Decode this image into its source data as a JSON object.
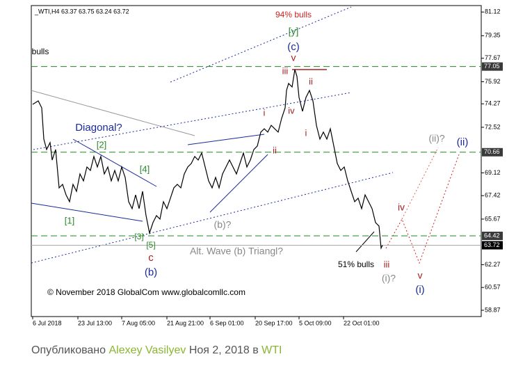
{
  "chart_data": {
    "type": "line",
    "title": "_WTI,H4  63.37 63.75 63.24 63.72",
    "credit": "© November 2018 GlobalCom www.globalcomllc.com",
    "x": [
      0,
      8,
      13,
      16,
      20,
      25,
      28,
      33,
      38,
      43,
      48,
      53,
      58,
      63,
      68,
      73,
      78,
      83,
      88,
      93,
      98,
      103,
      108,
      113,
      118,
      123,
      128,
      133,
      138,
      143,
      148,
      153,
      158,
      163,
      168,
      173,
      178,
      183,
      188,
      193,
      198,
      203,
      208,
      213,
      218,
      223,
      228,
      233,
      238,
      243,
      248,
      253,
      258,
      263,
      268,
      273,
      278,
      283,
      288,
      293,
      298,
      303,
      308,
      313,
      318,
      323,
      328,
      333,
      338,
      343,
      348,
      353,
      358,
      363,
      365,
      368,
      373,
      377,
      380,
      383,
      388,
      393,
      398,
      403,
      408,
      413,
      418,
      423,
      428,
      433,
      438,
      443,
      448,
      453,
      458,
      463,
      468,
      473,
      478,
      483,
      488,
      493,
      498,
      501,
      503
    ],
    "series": [
      {
        "name": "WTI",
        "color": "#000000",
        "values": [
          74.23,
          74.49,
          73.97,
          71.64,
          70.86,
          71.38,
          70.08,
          70.86,
          68.0,
          68.26,
          67.48,
          66.97,
          68.26,
          67.74,
          69.04,
          68.52,
          69.56,
          69.3,
          70.34,
          69.56,
          70.34,
          69.04,
          69.56,
          68.52,
          69.3,
          68.52,
          69.56,
          68.78,
          66.97,
          66.45,
          67.48,
          66.45,
          67.74,
          65.93,
          64.63,
          65.41,
          65.93,
          65.67,
          66.97,
          66.45,
          67.23,
          68.0,
          68.26,
          68.0,
          69.04,
          69.56,
          69.82,
          70.34,
          70.08,
          70.6,
          69.56,
          68.52,
          68.0,
          68.78,
          68.0,
          69.04,
          69.56,
          70.08,
          69.56,
          69.04,
          69.82,
          70.6,
          69.56,
          70.08,
          70.86,
          71.12,
          72.16,
          72.41,
          72.16,
          72.67,
          72.41,
          72.16,
          73.19,
          73.97,
          75.27,
          75.79,
          75.53,
          76.83,
          76.31,
          74.75,
          73.71,
          74.75,
          75.27,
          74.49,
          72.67,
          71.64,
          72.16,
          71.64,
          72.41,
          71.12,
          69.82,
          69.3,
          69.56,
          68.52,
          67.74,
          66.97,
          67.23,
          66.45,
          67.48,
          66.97,
          66.45,
          65.41,
          65.15,
          63.5,
          63.72
        ]
      }
    ],
    "xlim": [
      0,
      645
    ],
    "xticks": [
      {
        "value": 0,
        "label": "6 Jul 2018"
      },
      {
        "value": 65,
        "label": "23 Jul 13:00"
      },
      {
        "value": 128,
        "label": "7 Aug 05:00"
      },
      {
        "value": 193,
        "label": "21 Aug 21:00"
      },
      {
        "value": 255,
        "label": "6 Sep 01:00"
      },
      {
        "value": 320,
        "label": "20 Sep 17:00"
      },
      {
        "value": 383,
        "label": "5 Oct 09:00"
      },
      {
        "value": 447,
        "label": "22 Oct 01:00"
      }
    ],
    "ylim": [
      58.4,
      81.6
    ],
    "yticks": [
      81.12,
      79.35,
      77.67,
      75.92,
      74.27,
      72.52,
      69.12,
      67.42,
      65.67,
      62.27,
      60.57,
      58.87
    ],
    "levels": [
      77.05,
      70.66,
      64.42
    ],
    "last_price": 63.72,
    "annotations": [
      "94% bulls",
      "[y]",
      "(c)",
      "v",
      "iii",
      "ii",
      "iv",
      "i",
      "i",
      "ii",
      "Diagonal?",
      "[2]",
      "[4]",
      "[1]",
      "[3]",
      "[5]",
      "c",
      "(b)",
      "(b)?",
      "Alt. Wave (b) Triangl?",
      "51% bulls",
      "iii",
      "(i)?",
      "iv",
      "v",
      "(i)",
      "(ii)?",
      "(ii)",
      "bulls"
    ]
  },
  "footer": {
    "prefix": "Опубликовано",
    "author": "Alexey Vasilyev",
    "date": "Ноя 2, 2018 в",
    "symbol": "WTI"
  }
}
